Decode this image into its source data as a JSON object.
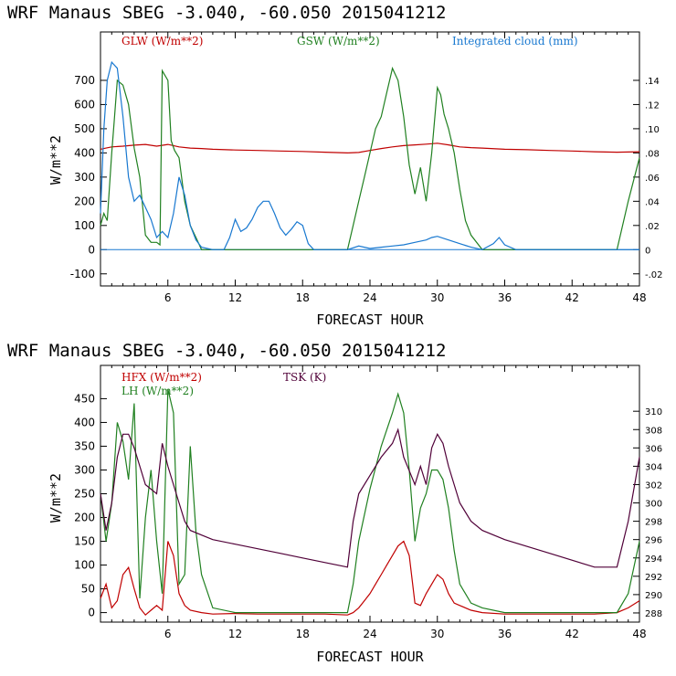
{
  "chart_data": [
    {
      "type": "line",
      "title": "WRF   Manaus SBEG   -3.040, -60.050  2015041212",
      "xlabel": "FORECAST HOUR",
      "ylabel": "W/m**2",
      "xlim": [
        0,
        48
      ],
      "ylim": [
        -150,
        900
      ],
      "y2lim": [
        -0.03,
        0.18
      ],
      "xticks": [
        6,
        12,
        18,
        24,
        30,
        36,
        42,
        48
      ],
      "yticks": [
        -100,
        0,
        100,
        200,
        300,
        400,
        500,
        600,
        700
      ],
      "y2ticks": [
        -0.02,
        0,
        0.02,
        0.04,
        0.06,
        0.08,
        0.1,
        0.12,
        0.14
      ],
      "y2ticklabels": [
        "-.02",
        "0",
        ".02",
        ".04",
        ".06",
        ".08",
        ".10",
        ".12",
        ".14"
      ],
      "series": [
        {
          "name": "GLW (W/m**2)",
          "color": "#c00000",
          "axis": "left",
          "x": [
            0,
            0.5,
            1,
            2,
            3,
            4,
            5,
            6,
            7,
            8,
            9,
            10,
            12,
            14,
            16,
            18,
            20,
            22,
            23,
            24,
            25,
            26,
            27,
            28,
            29,
            30,
            31,
            32,
            33,
            34,
            36,
            38,
            40,
            42,
            44,
            46,
            48
          ],
          "y": [
            415,
            420,
            425,
            428,
            432,
            435,
            428,
            435,
            425,
            420,
            418,
            415,
            412,
            410,
            408,
            406,
            403,
            400,
            402,
            410,
            418,
            425,
            430,
            433,
            436,
            440,
            433,
            425,
            422,
            420,
            415,
            413,
            410,
            408,
            405,
            403,
            405
          ]
        },
        {
          "name": "GSW (W/m**2)",
          "color": "#208020",
          "axis": "left",
          "x": [
            0,
            0.3,
            0.6,
            1,
            1.2,
            1.5,
            2,
            2.5,
            3,
            3.5,
            4,
            4.5,
            5,
            5.3,
            5.5,
            6,
            6.3,
            6.6,
            7,
            7.5,
            8,
            8.5,
            9,
            9.5,
            10,
            11,
            20,
            22,
            22.5,
            23,
            23.5,
            24,
            24.5,
            25,
            25.5,
            26,
            26.5,
            27,
            27.5,
            28,
            28.5,
            29,
            29.5,
            30,
            30.3,
            30.6,
            31,
            31.5,
            32,
            32.5,
            33,
            34,
            35,
            36,
            46,
            47,
            48
          ],
          "y": [
            100,
            150,
            120,
            400,
            520,
            700,
            680,
            600,
            420,
            300,
            60,
            30,
            30,
            20,
            740,
            700,
            450,
            410,
            380,
            200,
            100,
            50,
            0,
            0,
            0,
            0,
            0,
            0,
            100,
            200,
            300,
            400,
            500,
            550,
            650,
            750,
            700,
            550,
            350,
            230,
            340,
            200,
            400,
            670,
            640,
            560,
            500,
            400,
            250,
            120,
            60,
            0,
            0,
            0,
            0,
            200,
            380
          ]
        },
        {
          "name": "Integrated cloud (mm)",
          "color": "#1878d0",
          "axis": "right",
          "x": [
            0,
            0.3,
            0.6,
            1,
            1.5,
            2,
            2.5,
            3,
            3.5,
            4,
            4.5,
            5,
            5.5,
            6,
            6.5,
            7,
            7.5,
            8,
            8.5,
            9,
            10,
            11,
            11.5,
            12,
            12.5,
            13,
            13.5,
            14,
            14.5,
            15,
            15.5,
            16,
            16.5,
            17,
            17.5,
            18,
            18.5,
            19,
            20,
            22,
            23,
            24,
            25,
            26,
            27,
            28,
            29,
            29.5,
            30,
            31,
            32,
            33,
            34,
            35,
            35.5,
            36,
            37,
            38,
            48
          ],
          "y": [
            0.03,
            0.1,
            0.14,
            0.155,
            0.15,
            0.11,
            0.06,
            0.04,
            0.045,
            0.035,
            0.025,
            0.01,
            0.015,
            0.01,
            0.03,
            0.06,
            0.045,
            0.02,
            0.008,
            0.002,
            0,
            0,
            0.01,
            0.025,
            0.015,
            0.018,
            0.025,
            0.035,
            0.04,
            0.04,
            0.03,
            0.018,
            0.012,
            0.017,
            0.023,
            0.02,
            0.005,
            0,
            0,
            0,
            0.003,
            0.001,
            0.002,
            0.003,
            0.004,
            0.006,
            0.008,
            0.01,
            0.011,
            0.008,
            0.005,
            0.002,
            0,
            0.005,
            0.01,
            0.004,
            0,
            0,
            0
          ]
        }
      ]
    },
    {
      "type": "line",
      "title": "WRF   Manaus SBEG   -3.040, -60.050  2015041212",
      "xlabel": "FORECAST HOUR",
      "ylabel": "W/m**2",
      "xlim": [
        0,
        48
      ],
      "ylim": [
        -20,
        520
      ],
      "y2lim": [
        287,
        315
      ],
      "xticks": [
        6,
        12,
        18,
        24,
        30,
        36,
        42,
        48
      ],
      "yticks": [
        0,
        50,
        100,
        150,
        200,
        250,
        300,
        350,
        400,
        450
      ],
      "y2ticks": [
        288,
        290,
        292,
        294,
        296,
        298,
        300,
        302,
        304,
        306,
        308,
        310
      ],
      "series": [
        {
          "name": "HFX (W/m**2)",
          "color": "#c00000",
          "axis": "left",
          "x": [
            0,
            0.5,
            1,
            1.5,
            2,
            2.5,
            3,
            3.5,
            4,
            4.5,
            5,
            5.5,
            6,
            6.5,
            7,
            7.5,
            8,
            9,
            10,
            12,
            14,
            16,
            18,
            20,
            22,
            22.5,
            23,
            23.5,
            24,
            24.5,
            25,
            25.5,
            26,
            26.5,
            27,
            27.5,
            28,
            28.5,
            29,
            29.5,
            30,
            30.5,
            31,
            31.5,
            32,
            33,
            34,
            36,
            40,
            44,
            46,
            47,
            48
          ],
          "y": [
            30,
            60,
            10,
            25,
            80,
            95,
            50,
            10,
            -5,
            5,
            15,
            5,
            150,
            120,
            40,
            15,
            5,
            0,
            -3,
            -2,
            -3,
            -3,
            -3,
            -3,
            -5,
            0,
            10,
            25,
            40,
            60,
            80,
            100,
            120,
            140,
            150,
            120,
            20,
            15,
            40,
            60,
            80,
            70,
            40,
            20,
            15,
            5,
            0,
            -3,
            -3,
            -3,
            0,
            10,
            25
          ]
        },
        {
          "name": "LH  (W/m**2)",
          "color": "#208020",
          "axis": "left",
          "x": [
            0,
            0.5,
            1,
            1.5,
            2,
            2.5,
            3,
            3.5,
            4,
            4.5,
            5,
            5.5,
            6,
            6.5,
            7,
            7.5,
            8,
            8.5,
            9,
            10,
            12,
            20,
            22,
            22.5,
            23,
            24,
            25,
            26,
            26.5,
            27,
            27.5,
            28,
            28.5,
            29,
            29.5,
            30,
            30.5,
            31,
            31.5,
            32,
            33,
            34,
            36,
            46,
            47,
            48
          ],
          "y": [
            250,
            150,
            230,
            400,
            360,
            280,
            440,
            30,
            200,
            300,
            150,
            40,
            470,
            420,
            60,
            80,
            350,
            170,
            80,
            10,
            0,
            0,
            0,
            60,
            150,
            260,
            350,
            420,
            460,
            420,
            300,
            150,
            220,
            250,
            300,
            300,
            280,
            220,
            130,
            60,
            20,
            10,
            0,
            0,
            40,
            150
          ]
        },
        {
          "name": "TSK (K)",
          "color": "#500038",
          "axis": "right",
          "x": [
            0,
            0.5,
            1,
            1.5,
            2,
            2.5,
            3,
            4,
            5,
            5.5,
            6,
            6.5,
            7,
            7.5,
            8,
            9,
            10,
            12,
            14,
            16,
            18,
            20,
            22,
            22.5,
            23,
            24,
            25,
            26,
            26.5,
            27,
            28,
            28.5,
            29,
            29.5,
            30,
            30.5,
            31,
            32,
            33,
            34,
            36,
            40,
            44,
            46,
            47,
            48
          ],
          "y": [
            301,
            297,
            300,
            305,
            307.5,
            307.5,
            306,
            302,
            301,
            306.5,
            304,
            302,
            300,
            298,
            297,
            296.5,
            296,
            295.5,
            295,
            294.5,
            294,
            293.5,
            293,
            298,
            301,
            303,
            305,
            306.5,
            308,
            305,
            302,
            304,
            302,
            306,
            307.5,
            306.5,
            304,
            300,
            298,
            297,
            296,
            294.5,
            293,
            293,
            298,
            305
          ]
        }
      ]
    }
  ]
}
